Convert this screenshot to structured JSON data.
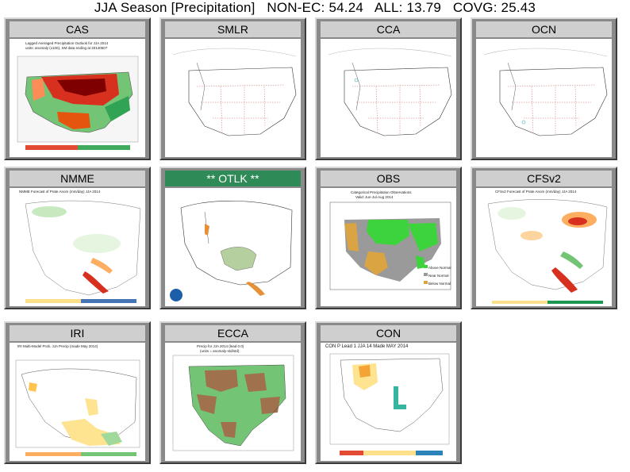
{
  "title": "JJA Season [Precipitation]   NON-EC: 54.24   ALL: 13.79   COVG: 25.43",
  "panels": {
    "cas": {
      "label": "CAS",
      "caption1": "Lagged Averaged Precipitation Outlook for JJA 2014",
      "caption2": "units: anomaly (x100), SM data ending at 20140507"
    },
    "smlr": {
      "label": "SMLR"
    },
    "cca": {
      "label": "CCA"
    },
    "ocn": {
      "label": "OCN"
    },
    "nmme": {
      "label": "NMME",
      "caption1": "NMME Forecast of Prate Anom (mm/day) JJA 2014"
    },
    "otlk": {
      "label": "** OTLK **"
    },
    "obs": {
      "label": "OBS",
      "caption1": "Categorical Precipitation Observations",
      "caption2": "Valid: Jun-Jul-Aug 2014",
      "legend": [
        "Above Normal",
        "Near Normal",
        "Below Normal"
      ]
    },
    "cfsv2": {
      "label": "CFSv2",
      "caption1": "CFSv2 Forecast of Prate Anom (mm/day) JJA 2014"
    },
    "iri": {
      "label": "IRI",
      "caption1": "IRI Multi-Model Prob. JJA Precip (made May 2014)"
    },
    "ecca": {
      "label": "ECCA",
      "caption1": "Precip for JJA 2014 (lead 0.0)",
      "caption2": "(units = anomaly-std/std)"
    },
    "con": {
      "label": "CON",
      "caption1": "CON P   Lead 1 JJA 14 Made MAY 2014"
    }
  }
}
